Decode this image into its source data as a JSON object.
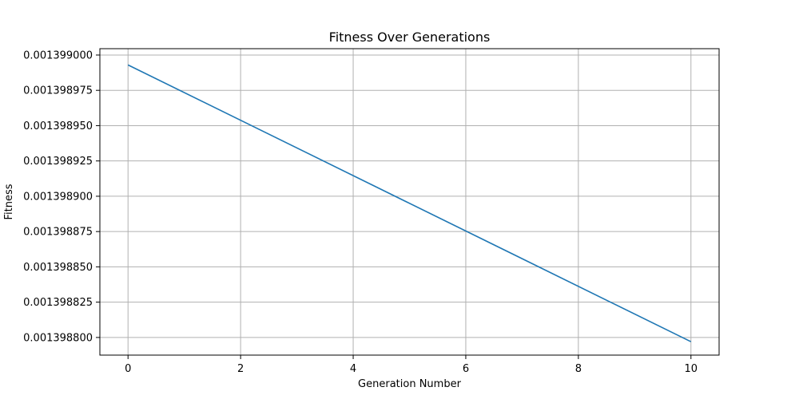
{
  "chart_data": {
    "type": "line",
    "title": "Fitness Over Generations",
    "xlabel": "Generation Number",
    "ylabel": "Fitness",
    "xlim": [
      -0.5,
      10.5
    ],
    "ylim": [
      0.0013987875,
      0.0013990045
    ],
    "x_ticks": [
      0,
      2,
      4,
      6,
      8,
      10
    ],
    "x_tick_labels": [
      "0",
      "2",
      "4",
      "6",
      "8",
      "10"
    ],
    "y_ticks": [
      0.0013988,
      0.001398825,
      0.00139885,
      0.001398875,
      0.0013989,
      0.001398925,
      0.00139895,
      0.001398975,
      0.001399
    ],
    "y_tick_labels": [
      "0.001398800",
      "0.001398825",
      "0.001398850",
      "0.001398875",
      "0.001398900",
      "0.001398925",
      "0.001398950",
      "0.001398975",
      "0.001399000"
    ],
    "grid": true,
    "series": [
      {
        "color": "#1f77b4",
        "x": [
          0,
          10
        ],
        "y": [
          0.001398993,
          0.001398797
        ]
      }
    ]
  }
}
